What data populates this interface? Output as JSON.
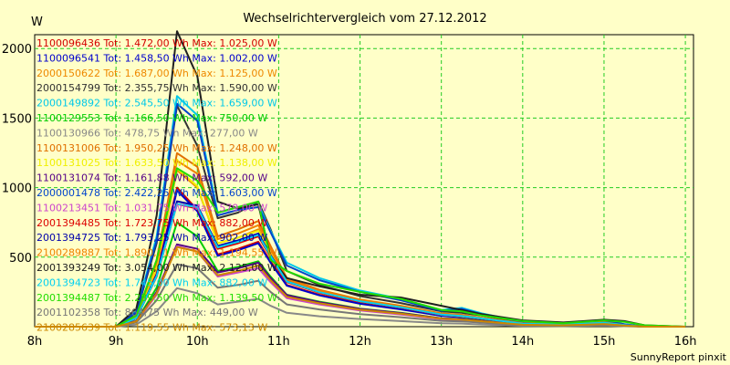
{
  "chart_data": {
    "type": "line",
    "title": "Wechselrichtervergleich vom 27.12.2012",
    "ylabel": "W",
    "xlabel": "",
    "footer": "SunnyReport pinxit",
    "ylim": [
      0,
      2100
    ],
    "xlim": [
      8,
      16.1
    ],
    "yticks": [
      500,
      1000,
      1500,
      2000
    ],
    "yticklabels": [
      "500",
      "1000",
      "1500",
      "2000"
    ],
    "xticks": [
      8,
      9,
      10,
      11,
      12,
      13,
      14,
      15,
      16
    ],
    "xticklabels": [
      "8h",
      "9h",
      "10h",
      "11h",
      "12h",
      "13h",
      "14h",
      "15h",
      "16h"
    ],
    "grid": true,
    "x": [
      8.0,
      8.75,
      9.0,
      9.25,
      9.5,
      9.75,
      10.0,
      10.25,
      10.5,
      10.75,
      10.9,
      11.1,
      11.5,
      12.0,
      12.5,
      13.0,
      13.25,
      13.5,
      14.0,
      14.5,
      15.0,
      15.25,
      15.5,
      16.0
    ],
    "series": [
      {
        "name": "1100096436",
        "legend": "1100096436 Tot: 1.472,00 Wh Max: 1.025,00 W",
        "color": "#d40000",
        "values": [
          0,
          0,
          0,
          60,
          380,
          1000,
          840,
          520,
          560,
          610,
          470,
          300,
          230,
          170,
          130,
          80,
          70,
          55,
          20,
          15,
          25,
          10,
          0,
          0
        ]
      },
      {
        "name": "1100096541",
        "legend": "1100096541 Tot: 1.458,50 Wh Max: 1.002,00 W",
        "color": "#0000cc",
        "values": [
          0,
          0,
          0,
          60,
          370,
          980,
          830,
          510,
          550,
          600,
          460,
          295,
          225,
          165,
          125,
          78,
          68,
          52,
          18,
          14,
          24,
          10,
          0,
          0
        ]
      },
      {
        "name": "2000150622",
        "legend": "2000150622 Tot: 1.687,00 Wh Max: 1.125,00 W",
        "color": "#ee8800",
        "values": [
          0,
          0,
          0,
          70,
          420,
          1125,
          1000,
          600,
          640,
          700,
          530,
          330,
          250,
          185,
          140,
          88,
          75,
          58,
          22,
          16,
          28,
          12,
          0,
          0
        ]
      },
      {
        "name": "2000154799",
        "legend": "2000154799 Tot: 2.355,75 Wh Max: 1.590,00 W",
        "color": "#333333",
        "values": [
          0,
          0,
          0,
          100,
          600,
          1590,
          1300,
          780,
          820,
          900,
          700,
          400,
          300,
          220,
          170,
          110,
          100,
          80,
          30,
          20,
          40,
          15,
          0,
          0
        ]
      },
      {
        "name": "2000149892",
        "legend": "2000149892 Tot: 2.545,50 Wh Max: 1.659,00 W",
        "color": "#00c8e8",
        "values": [
          0,
          0,
          0,
          110,
          650,
          1659,
          1520,
          820,
          860,
          880,
          690,
          460,
          350,
          260,
          200,
          120,
          135,
          95,
          35,
          22,
          45,
          18,
          0,
          0
        ]
      },
      {
        "name": "1100129553",
        "legend": "1100129553 Tot: 1.166,50 Wh Max: 750,00 W",
        "color": "#00cc00",
        "values": [
          0,
          0,
          0,
          40,
          280,
          750,
          650,
          400,
          430,
          470,
          360,
          230,
          180,
          130,
          100,
          60,
          55,
          42,
          15,
          10,
          20,
          8,
          0,
          0
        ]
      },
      {
        "name": "1100130966",
        "legend": "1100130966 Tot: 478,75 Wh Max: 277,00 W",
        "color": "#888888",
        "values": [
          0,
          0,
          0,
          15,
          110,
          277,
          240,
          160,
          180,
          200,
          150,
          100,
          75,
          55,
          40,
          25,
          22,
          16,
          6,
          4,
          8,
          3,
          0,
          0
        ]
      },
      {
        "name": "1100131006",
        "legend": "1100131006 Tot: 1.950,25 Wh Max: 1.248,00 W",
        "color": "#e07000",
        "values": [
          0,
          0,
          0,
          80,
          480,
          1248,
          1150,
          650,
          700,
          760,
          580,
          350,
          265,
          195,
          150,
          95,
          85,
          65,
          25,
          17,
          32,
          13,
          0,
          0
        ]
      },
      {
        "name": "1100131025",
        "legend": "1100131025 Tot: 1.633,50 Wh Max: 1.138,00 W",
        "color": "#f0f000",
        "values": [
          0,
          0,
          0,
          70,
          430,
          1138,
          1010,
          600,
          640,
          690,
          525,
          325,
          245,
          180,
          138,
          86,
          74,
          57,
          21,
          15,
          27,
          11,
          0,
          0
        ]
      },
      {
        "name": "1100131074",
        "legend": "1100131074 Tot: 1.161,88 Wh Max: 592,00 W",
        "color": "#550088",
        "values": [
          0,
          0,
          0,
          40,
          250,
          592,
          560,
          390,
          420,
          460,
          350,
          228,
          176,
          128,
          98,
          60,
          54,
          41,
          15,
          10,
          20,
          8,
          0,
          0
        ]
      },
      {
        "name": "2000001478",
        "legend": "2000001478 Tot: 2.422,25 Wh Max: 1.603,00 W",
        "color": "#0044cc",
        "values": [
          0,
          0,
          0,
          105,
          620,
          1603,
          1480,
          800,
          840,
          860,
          680,
          440,
          335,
          250,
          190,
          115,
          128,
          90,
          33,
          21,
          43,
          17,
          0,
          0
        ]
      },
      {
        "name": "1100213451",
        "legend": "1100213451 Tot: 1.031,75 Wh Max: 579,00 W",
        "color": "#cc44cc",
        "values": [
          0,
          0,
          0,
          35,
          230,
          579,
          540,
          360,
          390,
          420,
          320,
          205,
          160,
          116,
          88,
          54,
          48,
          37,
          13,
          9,
          18,
          7,
          0,
          0
        ]
      },
      {
        "name": "2001394485",
        "legend": "2001394485 Tot: 1.723,75 Wh Max: 882,00 W",
        "color": "#dd0000",
        "values": [
          0,
          0,
          0,
          60,
          360,
          882,
          850,
          560,
          600,
          650,
          500,
          320,
          245,
          180,
          138,
          86,
          76,
          58,
          21,
          15,
          28,
          11,
          0,
          0
        ]
      },
      {
        "name": "2001394725",
        "legend": "2001394725 Tot: 1.793,25 Wh Max: 902,00 W",
        "color": "#0000aa",
        "values": [
          0,
          0,
          0,
          62,
          370,
          902,
          870,
          580,
          620,
          670,
          515,
          330,
          252,
          186,
          142,
          89,
          78,
          60,
          22,
          16,
          29,
          12,
          0,
          0
        ]
      },
      {
        "name": "2100289887",
        "legend": "2100289887 Tot: 1.890,71 Wh Max: 1.194,55 W",
        "color": "#f08000",
        "values": [
          0,
          0,
          0,
          75,
          460,
          1194,
          1100,
          630,
          670,
          730,
          560,
          340,
          258,
          190,
          146,
          92,
          82,
          63,
          24,
          17,
          31,
          12,
          0,
          0
        ]
      },
      {
        "name": "2001393249",
        "legend": "2001393249 Tot: 3.054,00 Wh Max: 2.125,00 W",
        "color": "#202020",
        "values": [
          0,
          0,
          0,
          130,
          800,
          2125,
          1800,
          900,
          850,
          880,
          500,
          350,
          290,
          230,
          210,
          150,
          120,
          90,
          45,
          30,
          50,
          40,
          10,
          0
        ]
      },
      {
        "name": "2001394723",
        "legend": "2001394723 Tot: 1.745,00 Wh Max: 882,00 W",
        "color": "#00d0f0",
        "values": [
          0,
          0,
          0,
          61,
          365,
          882,
          860,
          570,
          610,
          660,
          508,
          325,
          248,
          183,
          140,
          87,
          77,
          59,
          21,
          15,
          28,
          11,
          0,
          0
        ]
      },
      {
        "name": "2001394487",
        "legend": "2001394487 Tot: 2.289,50 Wh Max: 1.139,50 W",
        "color": "#22dd00",
        "values": [
          0,
          0,
          0,
          80,
          480,
          1139,
          1050,
          820,
          860,
          900,
          480,
          400,
          310,
          250,
          200,
          120,
          110,
          80,
          40,
          25,
          45,
          35,
          10,
          0
        ]
      },
      {
        "name": "2001102358",
        "legend": "2001102358 Tot: 864,75 Wh Max: 449,00 W",
        "color": "#777777",
        "values": [
          0,
          0,
          0,
          30,
          190,
          449,
          420,
          280,
          300,
          330,
          250,
          160,
          124,
          90,
          68,
          42,
          38,
          29,
          10,
          7,
          14,
          6,
          0,
          0
        ]
      },
      {
        "name": "2100285639",
        "legend": "2100285639 Tot: 1.119,55 Wh Max: 573,13 W",
        "color": "#cc8800",
        "values": [
          0,
          0,
          0,
          38,
          240,
          573,
          540,
          370,
          400,
          440,
          335,
          215,
          168,
          122,
          93,
          57,
          51,
          39,
          14,
          10,
          19,
          8,
          0,
          0
        ]
      }
    ]
  }
}
